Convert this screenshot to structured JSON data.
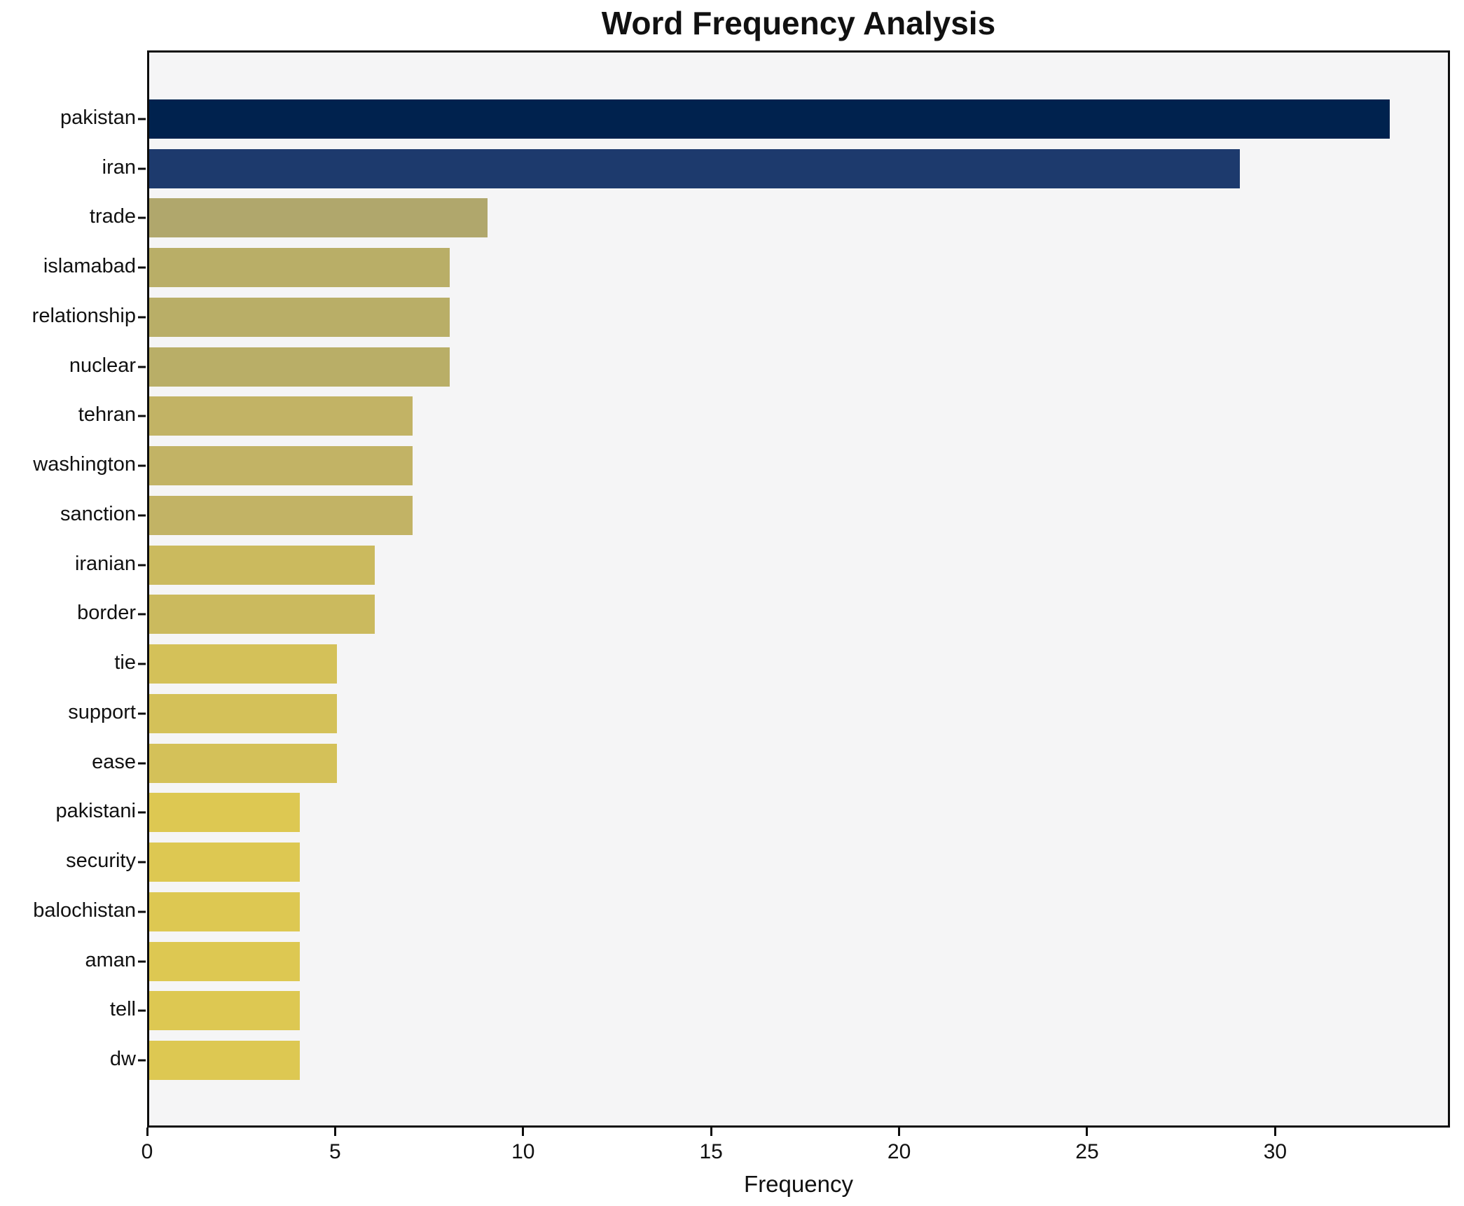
{
  "chart_data": {
    "type": "bar",
    "orientation": "horizontal",
    "title": "Word Frequency Analysis",
    "xlabel": "Frequency",
    "ylabel": "",
    "categories": [
      "pakistan",
      "iran",
      "trade",
      "islamabad",
      "relationship",
      "nuclear",
      "tehran",
      "washington",
      "sanction",
      "iranian",
      "border",
      "tie",
      "support",
      "ease",
      "pakistani",
      "security",
      "balochistan",
      "aman",
      "tell",
      "dw"
    ],
    "values": [
      33,
      29,
      9,
      8,
      8,
      8,
      7,
      7,
      7,
      6,
      6,
      5,
      5,
      5,
      4,
      4,
      4,
      4,
      4,
      4
    ],
    "bar_colors": [
      "#00224e",
      "#1d3a6d",
      "#b0a76c",
      "#b9ae67",
      "#b9ae67",
      "#b9ae67",
      "#c2b365",
      "#c2b365",
      "#c2b365",
      "#cbba5e",
      "#cbba5e",
      "#d4c159",
      "#d4c159",
      "#d4c159",
      "#ddc852",
      "#ddc852",
      "#ddc852",
      "#ddc852",
      "#ddc852",
      "#ddc852"
    ],
    "x_ticks": [
      0,
      5,
      10,
      15,
      20,
      25,
      30
    ],
    "xlim": [
      0,
      34.65
    ],
    "grid": false,
    "legend": null
  },
  "style_colors": {
    "plot_background": "#f5f5f6",
    "figure_background": "#ffffff",
    "spine": "#0d0d0d",
    "text": "#111111"
  }
}
